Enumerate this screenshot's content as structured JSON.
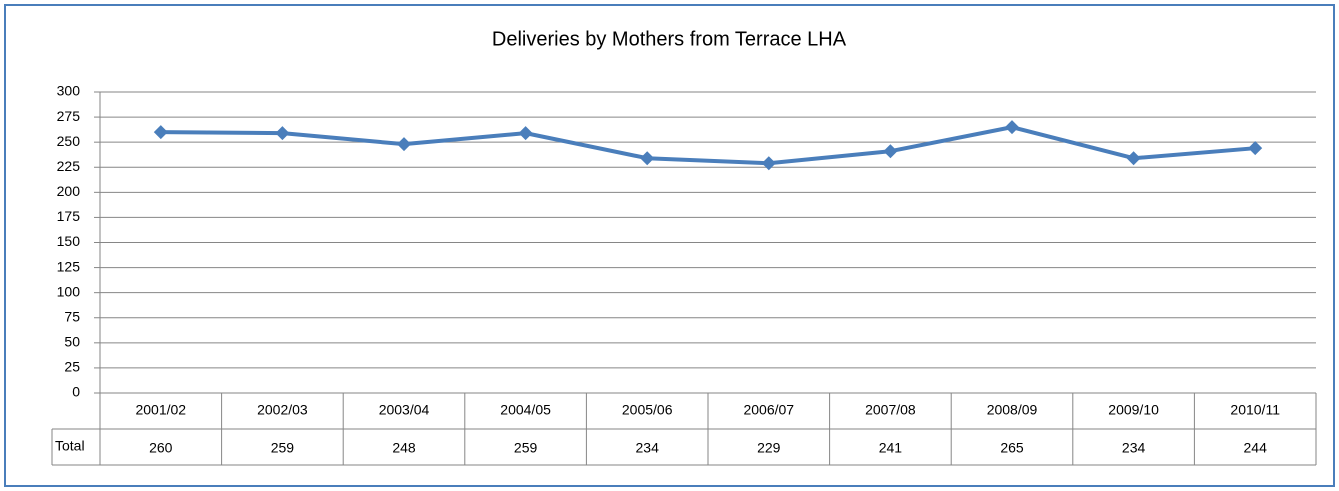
{
  "chart_data": {
    "type": "line",
    "title": "Deliveries by Mothers from Terrace LHA",
    "categories": [
      "2001/02",
      "2002/03",
      "2003/04",
      "2004/05",
      "2005/06",
      "2006/07",
      "2007/08",
      "2008/09",
      "2009/10",
      "2010/11"
    ],
    "series": [
      {
        "name": "Total",
        "color": "#4a7ebb",
        "values": [
          260,
          259,
          248,
          259,
          234,
          229,
          241,
          265,
          234,
          244
        ]
      }
    ],
    "ylim": [
      0,
      300
    ],
    "yticks": [
      0,
      25,
      50,
      75,
      100,
      125,
      150,
      175,
      200,
      225,
      250,
      275,
      300
    ],
    "grid": true,
    "data_table": true
  }
}
